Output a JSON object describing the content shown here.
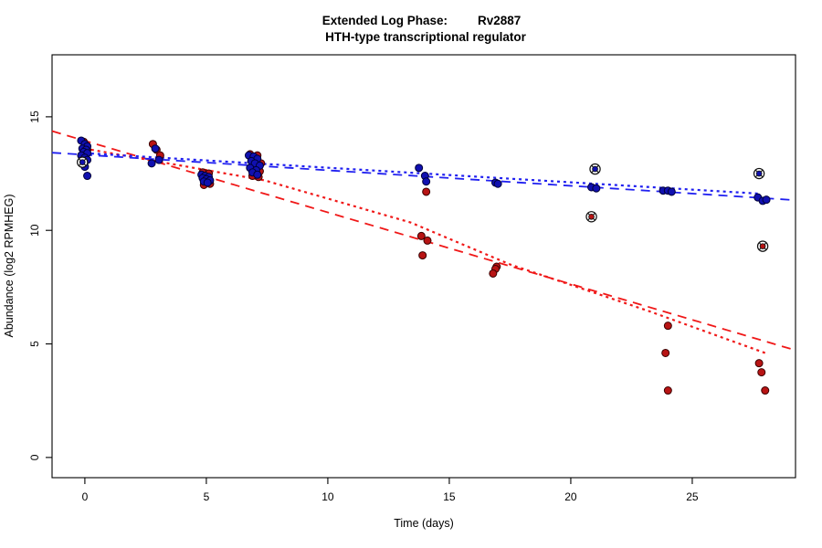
{
  "title": {
    "line1_left": "Extended Log Phase:",
    "line1_right": "Rv2887",
    "line2": "HTH-type transcriptional regulator"
  },
  "chart_data": {
    "type": "scatter",
    "title": "Extended Log Phase: Rv2887",
    "subtitle": "HTH-type transcriptional regulator",
    "xlabel": "Time  (days)",
    "ylabel": "Abundance  (log2 RPMHEG)",
    "xlim": [
      -1.35,
      29.25
    ],
    "ylim": [
      -0.89,
      17.73
    ],
    "x_ticks": [
      0,
      5,
      10,
      15,
      20,
      25
    ],
    "y_ticks": [
      0,
      5,
      10,
      15
    ],
    "grid": false,
    "legend": "none",
    "colors": {
      "red_point_fill": "#b81414",
      "red_point_stroke": "#3a0000",
      "blue_point_fill": "#1010b0",
      "blue_point_stroke": "#000038",
      "red_line": "#f01818",
      "blue_line": "#2020f0",
      "flag_ring": "#111111"
    },
    "series": [
      {
        "name": "red-samples",
        "marker": "dot",
        "color": "#b81414",
        "stroke": "#3a0000",
        "points": [
          [
            -0.05,
            13.9
          ],
          [
            0.1,
            13.55
          ],
          [
            2.8,
            13.8
          ],
          [
            2.95,
            13.55
          ],
          [
            3.1,
            13.3
          ],
          [
            4.85,
            12.55
          ],
          [
            5.1,
            12.5
          ],
          [
            4.9,
            12.0
          ],
          [
            5.15,
            12.05
          ],
          [
            6.8,
            13.35
          ],
          [
            7.1,
            13.3
          ],
          [
            7.25,
            12.95
          ],
          [
            7.2,
            12.6
          ],
          [
            6.9,
            12.4
          ],
          [
            7.15,
            12.35
          ],
          [
            14.05,
            11.7
          ],
          [
            13.85,
            9.75
          ],
          [
            14.1,
            9.55
          ],
          [
            13.9,
            8.9
          ],
          [
            16.95,
            8.4
          ],
          [
            16.9,
            8.3
          ],
          [
            16.8,
            8.1
          ],
          [
            24.0,
            5.8
          ],
          [
            23.9,
            4.6
          ],
          [
            24.0,
            2.95
          ],
          [
            27.75,
            4.15
          ],
          [
            27.85,
            3.75
          ],
          [
            28.0,
            2.95
          ]
        ]
      },
      {
        "name": "blue-samples",
        "marker": "dot",
        "color": "#1010b0",
        "stroke": "#000038",
        "points": [
          [
            -0.15,
            13.95
          ],
          [
            0.0,
            13.8
          ],
          [
            0.1,
            13.7
          ],
          [
            -0.1,
            13.6
          ],
          [
            0.05,
            13.55
          ],
          [
            -0.05,
            13.45
          ],
          [
            0.1,
            13.4
          ],
          [
            -0.15,
            13.3
          ],
          [
            0.0,
            13.2
          ],
          [
            0.1,
            13.1
          ],
          [
            -0.05,
            12.95
          ],
          [
            0.0,
            12.8
          ],
          [
            0.1,
            12.4
          ],
          [
            2.9,
            13.6
          ],
          [
            3.05,
            13.1
          ],
          [
            2.75,
            12.95
          ],
          [
            4.8,
            12.45
          ],
          [
            4.95,
            12.4
          ],
          [
            5.1,
            12.35
          ],
          [
            4.85,
            12.3
          ],
          [
            5.0,
            12.25
          ],
          [
            5.15,
            12.2
          ],
          [
            4.9,
            12.15
          ],
          [
            5.05,
            12.1
          ],
          [
            6.75,
            13.3
          ],
          [
            6.95,
            13.25
          ],
          [
            7.1,
            13.15
          ],
          [
            6.85,
            13.05
          ],
          [
            7.0,
            12.95
          ],
          [
            7.2,
            12.85
          ],
          [
            6.8,
            12.75
          ],
          [
            7.05,
            12.65
          ],
          [
            6.9,
            12.55
          ],
          [
            7.1,
            12.45
          ],
          [
            13.75,
            12.75
          ],
          [
            14.0,
            12.4
          ],
          [
            14.05,
            12.15
          ],
          [
            16.9,
            12.1
          ],
          [
            17.0,
            12.05
          ],
          [
            20.85,
            11.9
          ],
          [
            21.05,
            11.85
          ],
          [
            23.8,
            11.75
          ],
          [
            24.0,
            11.75
          ],
          [
            24.15,
            11.7
          ],
          [
            27.7,
            11.45
          ],
          [
            27.9,
            11.3
          ],
          [
            28.05,
            11.35
          ]
        ]
      },
      {
        "name": "flagged-red-outliers",
        "marker": "circle-cross",
        "color": "#b81414",
        "stroke": "#111111",
        "points": [
          [
            20.85,
            10.6
          ],
          [
            27.9,
            9.3
          ]
        ]
      },
      {
        "name": "flagged-blue-outliers",
        "marker": "circle-cross",
        "color": "#1010b0",
        "stroke": "#111111",
        "points": [
          [
            -0.1,
            13.0
          ],
          [
            21.0,
            12.7
          ],
          [
            27.75,
            12.5
          ]
        ]
      }
    ],
    "trend_lines": [
      {
        "name": "red-dashed-fit",
        "color": "#f01818",
        "dash": "10,7",
        "width": 1.8,
        "points": [
          [
            -1.35,
            14.37
          ],
          [
            29.25,
            4.72
          ]
        ]
      },
      {
        "name": "red-dotted-fit",
        "color": "#f01818",
        "dash": "3,4",
        "width": 2.2,
        "points": [
          [
            0,
            13.6
          ],
          [
            7.4,
            12.2
          ],
          [
            13.4,
            10.35
          ],
          [
            17.5,
            8.5
          ],
          [
            23.2,
            6.45
          ],
          [
            28,
            4.6
          ]
        ]
      },
      {
        "name": "blue-dashed-fit",
        "color": "#2020f0",
        "dash": "10,7",
        "width": 1.8,
        "points": [
          [
            -1.35,
            13.42
          ],
          [
            29.25,
            11.33
          ]
        ]
      },
      {
        "name": "blue-dotted-fit",
        "color": "#2020f0",
        "dash": "3,4",
        "width": 2.2,
        "points": [
          [
            0,
            13.4
          ],
          [
            27.7,
            11.62
          ]
        ]
      }
    ]
  }
}
